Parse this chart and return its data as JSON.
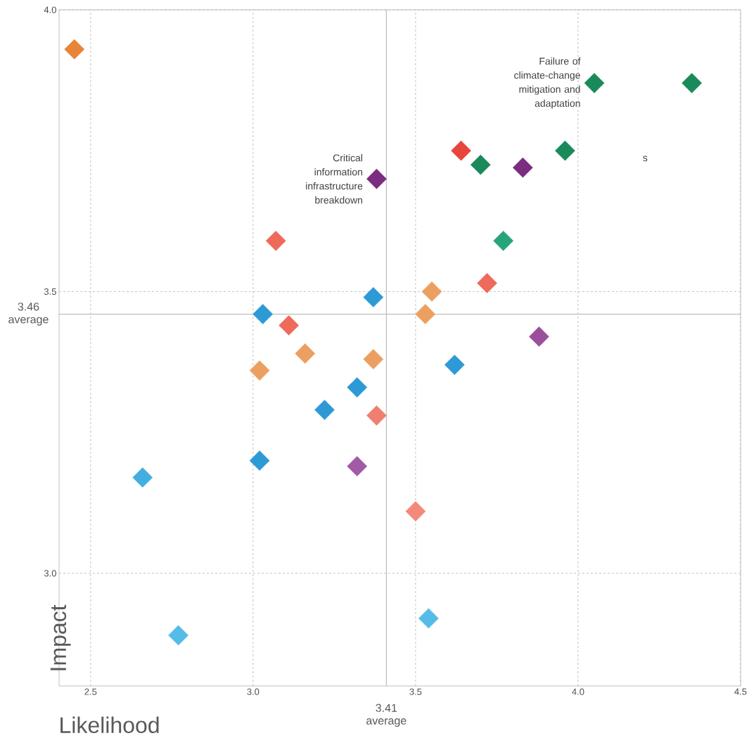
{
  "chart_data": {
    "type": "scatter",
    "xlabel": "Likelihood",
    "ylabel": "Impact",
    "x": [
      2.45,
      4.05,
      4.35,
      3.64,
      3.7,
      3.96,
      3.83,
      3.38,
      3.77,
      3.07,
      3.72,
      3.55,
      3.37,
      3.03,
      3.53,
      3.11,
      3.88,
      3.16,
      3.37,
      3.02,
      3.62,
      3.32,
      3.22,
      3.38,
      3.02,
      3.32,
      2.66,
      3.5,
      3.54,
      2.77
    ],
    "values": [
      3.93,
      3.87,
      3.87,
      3.75,
      3.725,
      3.75,
      3.72,
      3.7,
      3.59,
      3.59,
      3.515,
      3.5,
      3.49,
      3.46,
      3.46,
      3.44,
      3.42,
      3.39,
      3.38,
      3.36,
      3.37,
      3.33,
      3.29,
      3.28,
      3.2,
      3.19,
      3.17,
      3.11,
      2.92,
      2.89
    ],
    "colors": [
      "#e8833a",
      "#1a8a5a",
      "#1a8a5a",
      "#e8453c",
      "#1a8a5a",
      "#1a8a5a",
      "#7b2d7f",
      "#7b2d7f",
      "#27a57a",
      "#ee6a5a",
      "#ee6a5a",
      "#eba062",
      "#2d9ad6",
      "#2d9ad6",
      "#eba062",
      "#ee6a5a",
      "#9b4e9c",
      "#eba062",
      "#eba062",
      "#eba062",
      "#2d9ad6",
      "#2d9ad6",
      "#2d9ad6",
      "#f07f70",
      "#2d9ad6",
      "#a05aa8",
      "#45aee0",
      "#f28a7a",
      "#55bce8",
      "#55bce8"
    ],
    "marker": "diamond",
    "grid": true,
    "xlim": [
      2.403,
      4.5
    ],
    "ylim": [
      2.8,
      4.0
    ],
    "xticks": [
      2.5,
      {
        "value": 3,
        "label": "3.0"
      },
      3.5,
      {
        "value": 4,
        "label": "4.0"
      },
      4.5
    ],
    "yticks": [
      {
        "value": 3,
        "label": "3.0"
      },
      3.5,
      {
        "value": 4,
        "label": "4.0"
      }
    ],
    "ref_lines": [
      {
        "axis": "x",
        "value": 3.41,
        "label": "3.41 average",
        "color": "#b0b0b0"
      },
      {
        "axis": "y",
        "value": 3.46,
        "label": "3.46 average",
        "color": "#b0b0b0"
      }
    ],
    "annotations": [
      {
        "text": "Failure of climate-change mitigation and adaptation",
        "x": 4.05,
        "y": 3.87
      },
      {
        "text": "Critical information infrastructure breakdown",
        "x": 3.38,
        "y": 3.7
      },
      "s"
    ]
  }
}
